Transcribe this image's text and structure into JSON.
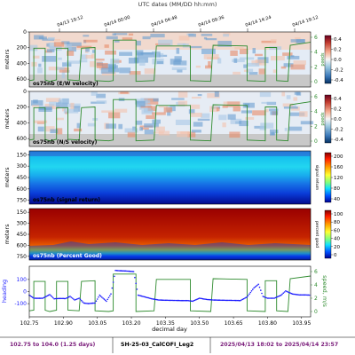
{
  "header": {
    "title": "UTC dates (MM/DD hh:mm)",
    "date_ticks": [
      "04/13 19:12",
      "04/14 00:00",
      "04/14 04:48",
      "04/14 09:36",
      "04/14 14:24",
      "04/14 19:12"
    ]
  },
  "footer": {
    "range_label": "102.75 to 104.0 (1.25 days)",
    "cruise_label": "SH-25-03_CalCOFI_Leg2",
    "date_range": "2025/04/13 18:02 to 2025/04/14 23:57"
  },
  "colors": {
    "label_purple": "#7a1c7a",
    "speed_line": "#2e8b2e",
    "heading_dots": "#1a1aff",
    "nodata_gray": "#c8c8c8"
  },
  "chart_data": [
    {
      "type": "heatmap",
      "panel_label": "os75nb (E/W velocity)",
      "ylabel": "meters",
      "y_ticks": [
        0,
        200,
        400,
        600
      ],
      "ylim": [
        700,
        0
      ],
      "xlim": [
        102.75,
        103.99
      ],
      "colormap": "RdBu_r",
      "colorbar_ticks": [
        "0.4",
        "0.2",
        "0.0",
        "-0.2",
        "-0.4"
      ],
      "right_axis_label": "speed",
      "right_ticks": [
        "6",
        "4",
        "2",
        "0"
      ],
      "overlay": "ship speed"
    },
    {
      "type": "heatmap",
      "panel_label": "os75nb (N/S velocity)",
      "ylabel": "meters",
      "y_ticks": [
        0,
        200,
        400,
        600
      ],
      "ylim": [
        700,
        0
      ],
      "xlim": [
        102.75,
        103.99
      ],
      "colormap": "RdBu_r",
      "colorbar_ticks": [
        "0.4",
        "0.2",
        "0.0",
        "-0.2",
        "-0.4"
      ],
      "right_axis_label": "speed",
      "right_ticks": [
        "6",
        "4",
        "2",
        "0"
      ],
      "overlay": "ship speed"
    },
    {
      "type": "heatmap",
      "panel_label": "os75nb (signal return)",
      "ylabel": "meters",
      "y_ticks": [
        150,
        300,
        450,
        600,
        750
      ],
      "ylim": [
        800,
        100
      ],
      "xlim": [
        102.75,
        103.99
      ],
      "colormap": "jet",
      "colorbar_ticks": [
        "200",
        "160",
        "120",
        "80",
        "40"
      ],
      "colorbar_label": "signal return"
    },
    {
      "type": "heatmap",
      "panel_label": "os75nb (Percent Good)",
      "ylabel": "meters",
      "y_ticks": [
        150,
        300,
        450,
        600,
        750
      ],
      "ylim": [
        800,
        100
      ],
      "xlim": [
        102.75,
        103.99
      ],
      "colormap": "jet",
      "colorbar_ticks": [
        "100",
        "80",
        "60",
        "40",
        "20",
        "0"
      ],
      "colorbar_label": "percent good"
    },
    {
      "type": "line",
      "ylabel": "heading",
      "right_label": "speed, m/s",
      "xlabel": "decimal day",
      "x_ticks": [
        "102.75",
        "102.90",
        "103.05",
        "103.20",
        "103.35",
        "103.50",
        "103.65",
        "103.80",
        "103.95"
      ],
      "y_ticks": [
        "100",
        "0",
        "-100"
      ],
      "right_ticks": [
        "6",
        "4",
        "2",
        "0"
      ],
      "xlim": [
        102.75,
        103.99
      ],
      "series": [
        {
          "values": [
            [
              102.75,
              0.5
            ],
            [
              102.77,
              0.6
            ],
            [
              102.77,
              4.9
            ],
            [
              102.82,
              4.9
            ],
            [
              102.82,
              0.6
            ],
            [
              102.84,
              0.4
            ],
            [
              102.87,
              0.6
            ],
            [
              102.87,
              4.9
            ],
            [
              102.92,
              4.9
            ],
            [
              102.92,
              0.6
            ],
            [
              102.97,
              0.5
            ],
            [
              102.98,
              4.9
            ],
            [
              103.04,
              5.0
            ],
            [
              103.04,
              0.5
            ],
            [
              103.1,
              0.4
            ],
            [
              103.12,
              0.5
            ],
            [
              103.12,
              6.0
            ],
            [
              103.22,
              6.0
            ],
            [
              103.22,
              0.4
            ],
            [
              103.3,
              0.5
            ],
            [
              103.31,
              5.2
            ],
            [
              103.46,
              5.2
            ],
            [
              103.46,
              0.5
            ],
            [
              103.55,
              0.4
            ],
            [
              103.56,
              5.3
            ],
            [
              103.71,
              5.2
            ],
            [
              103.71,
              0.5
            ],
            [
              103.79,
              0.4
            ],
            [
              103.79,
              5.0
            ],
            [
              103.84,
              5.0
            ],
            [
              103.84,
              0.5
            ],
            [
              103.89,
              0.4
            ],
            [
              103.9,
              5.3
            ],
            [
              103.99,
              5.7
            ]
          ]
        },
        {
          "values": [
            [
              102.75,
              -30
            ],
            [
              102.77,
              -55
            ],
            [
              102.79,
              -56
            ],
            [
              102.81,
              -55
            ],
            [
              102.82,
              -45
            ],
            [
              102.84,
              -25
            ],
            [
              102.86,
              -60
            ],
            [
              102.87,
              -58
            ],
            [
              102.89,
              -57
            ],
            [
              102.91,
              -58
            ],
            [
              102.93,
              -40
            ],
            [
              102.95,
              -70
            ],
            [
              102.97,
              -55
            ],
            [
              102.99,
              -95
            ],
            [
              103.01,
              -100
            ],
            [
              103.02,
              -98
            ],
            [
              103.04,
              -95
            ],
            [
              103.06,
              -30
            ],
            [
              103.09,
              -80
            ],
            [
              103.11,
              -20
            ],
            [
              103.13,
              175
            ],
            [
              103.15,
              172
            ],
            [
              103.18,
              170
            ],
            [
              103.21,
              165
            ],
            [
              103.23,
              -30
            ],
            [
              103.26,
              -45
            ],
            [
              103.29,
              -60
            ],
            [
              103.32,
              -70
            ],
            [
              103.35,
              -72
            ],
            [
              103.38,
              -73
            ],
            [
              103.42,
              -75
            ],
            [
              103.45,
              -75
            ],
            [
              103.47,
              -80
            ],
            [
              103.5,
              -55
            ],
            [
              103.53,
              -65
            ],
            [
              103.56,
              -70
            ],
            [
              103.6,
              -72
            ],
            [
              103.64,
              -73
            ],
            [
              103.68,
              -75
            ],
            [
              103.71,
              -45
            ],
            [
              103.74,
              30
            ],
            [
              103.76,
              60
            ],
            [
              103.78,
              -40
            ],
            [
              103.8,
              -55
            ],
            [
              103.83,
              -55
            ],
            [
              103.86,
              -30
            ],
            [
              103.88,
              5
            ],
            [
              103.91,
              -20
            ],
            [
              103.94,
              -28
            ],
            [
              103.97,
              -28
            ],
            [
              103.99,
              -30
            ]
          ]
        }
      ]
    }
  ]
}
